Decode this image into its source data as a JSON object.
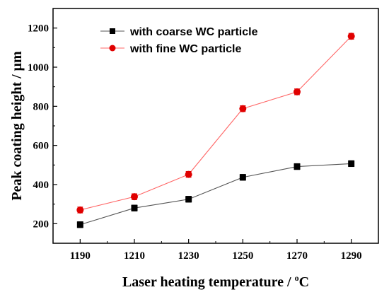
{
  "chart_data": {
    "type": "line",
    "x": [
      1190,
      1210,
      1230,
      1250,
      1270,
      1290
    ],
    "xlim": [
      1180,
      1300
    ],
    "ylim": [
      100,
      1300
    ],
    "x_ticks": [
      1190,
      1210,
      1230,
      1250,
      1270,
      1290
    ],
    "y_ticks": [
      200,
      400,
      600,
      800,
      1000,
      1200
    ],
    "xlabel_main": "Laser heating temperature / ",
    "xlabel_sup": "o",
    "xlabel_unit": "C",
    "ylabel": "Peak coating height / μm",
    "grid": false,
    "legend_position": "top-left",
    "series": [
      {
        "name": "with coarse WC particle",
        "color": "#555555",
        "marker_color": "#000000",
        "marker": "square",
        "values": [
          195,
          280,
          325,
          437,
          492,
          507
        ],
        "errors": [
          15,
          15,
          15,
          15,
          15,
          15
        ]
      },
      {
        "name": "with fine WC particle",
        "color": "#ff6666",
        "marker_color": "#e00000",
        "marker": "circle",
        "values": [
          270,
          338,
          452,
          788,
          874,
          1158
        ],
        "errors": [
          15,
          15,
          15,
          15,
          15,
          15
        ]
      }
    ]
  }
}
